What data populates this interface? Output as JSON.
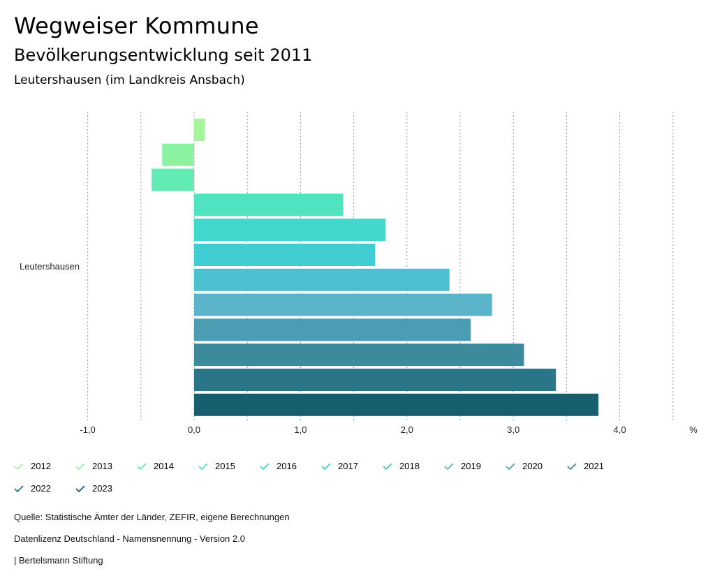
{
  "header": {
    "title": "Wegweiser Kommune",
    "subtitle": "Bevölkerungsentwicklung seit 2011",
    "region": "Leutershausen (im Landkreis Ansbach)"
  },
  "chart_data": {
    "type": "bar",
    "orientation": "horizontal",
    "categories": [
      "Leutershausen"
    ],
    "series": [
      {
        "name": "2012",
        "values": [
          0.1
        ],
        "color": "#a6f59a"
      },
      {
        "name": "2013",
        "values": [
          -0.3
        ],
        "color": "#8af2a0"
      },
      {
        "name": "2014",
        "values": [
          -0.4
        ],
        "color": "#63ebb4"
      },
      {
        "name": "2015",
        "values": [
          1.4
        ],
        "color": "#4fe3c0"
      },
      {
        "name": "2016",
        "values": [
          1.8
        ],
        "color": "#40d8cc"
      },
      {
        "name": "2017",
        "values": [
          1.7
        ],
        "color": "#40cdd1"
      },
      {
        "name": "2018",
        "values": [
          2.4
        ],
        "color": "#4bc0d0"
      },
      {
        "name": "2019",
        "values": [
          2.8
        ],
        "color": "#5bb4c9"
      },
      {
        "name": "2020",
        "values": [
          2.6
        ],
        "color": "#4a9db3"
      },
      {
        "name": "2021",
        "values": [
          3.1
        ],
        "color": "#3d8a9d"
      },
      {
        "name": "2022",
        "values": [
          3.4
        ],
        "color": "#2b7588"
      },
      {
        "name": "2023",
        "values": [
          3.8
        ],
        "color": "#175e6e"
      }
    ],
    "xlim": [
      -1.0,
      4.5
    ],
    "xticks": [
      "-1,0",
      "0,0",
      "1,0",
      "2,0",
      "3,0",
      "4,0"
    ],
    "xtick_values": [
      -1,
      0,
      1,
      2,
      3,
      4
    ],
    "grid_values": [
      -1,
      -0.5,
      0,
      0.5,
      1,
      1.5,
      2,
      2.5,
      3,
      3.5,
      4,
      4.5
    ],
    "unit": "%",
    "grid": true
  },
  "footer": {
    "source": "Quelle: Statistische Ämter der Länder, ZEFIR, eigene Berechnungen",
    "license": "Datenlizenz Deutschland - Namensnennung - Version 2.0",
    "credit": "| Bertelsmann Stiftung"
  }
}
